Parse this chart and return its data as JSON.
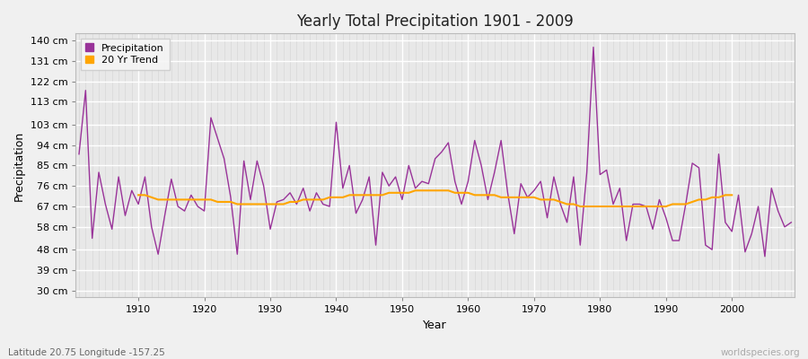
{
  "title": "Yearly Total Precipitation 1901 - 2009",
  "xlabel": "Year",
  "ylabel": "Precipitation",
  "subtitle": "Latitude 20.75 Longitude -157.25",
  "watermark": "worldspecies.org",
  "start_year": 1901,
  "precip_color": "#993399",
  "trend_color": "#FFA500",
  "background_color": "#f0f0f0",
  "plot_bg_color": "#e8e8e8",
  "grid_color_major": "#ffffff",
  "grid_color_minor": "#d8d8d8",
  "ylim": [
    27,
    143
  ],
  "yticks": [
    30,
    39,
    48,
    58,
    67,
    76,
    85,
    94,
    103,
    113,
    122,
    131,
    140
  ],
  "precipitation": [
    90,
    118,
    53,
    82,
    68,
    57,
    80,
    63,
    74,
    68,
    80,
    58,
    46,
    63,
    79,
    67,
    65,
    72,
    67,
    65,
    106,
    97,
    88,
    71,
    46,
    87,
    70,
    87,
    76,
    57,
    69,
    70,
    73,
    68,
    75,
    65,
    73,
    68,
    67,
    104,
    75,
    85,
    64,
    70,
    80,
    50,
    82,
    76,
    80,
    70,
    85,
    75,
    78,
    77,
    88,
    91,
    95,
    78,
    68,
    78,
    96,
    85,
    70,
    82,
    96,
    73,
    55,
    77,
    71,
    74,
    78,
    62,
    80,
    68,
    60,
    80,
    50,
    82,
    137,
    81,
    83,
    68,
    75,
    52,
    68,
    68,
    67,
    57,
    70,
    62,
    52,
    52,
    68,
    86,
    84,
    50,
    48,
    90,
    60,
    56,
    72,
    47,
    55,
    67,
    45,
    75,
    65,
    58,
    60
  ],
  "trend": [
    null,
    null,
    null,
    null,
    null,
    null,
    null,
    null,
    null,
    72,
    72,
    71,
    70,
    70,
    70,
    70,
    70,
    70,
    70,
    70,
    70,
    69,
    69,
    69,
    68,
    68,
    68,
    68,
    68,
    68,
    68,
    68,
    69,
    69,
    70,
    70,
    70,
    70,
    71,
    71,
    71,
    72,
    72,
    72,
    72,
    72,
    72,
    73,
    73,
    73,
    73,
    74,
    74,
    74,
    74,
    74,
    74,
    73,
    73,
    73,
    72,
    72,
    72,
    72,
    71,
    71,
    71,
    71,
    71,
    71,
    70,
    70,
    70,
    69,
    68,
    68,
    67,
    67,
    67,
    67,
    67,
    67,
    67,
    67,
    67,
    67,
    67,
    67,
    67,
    67,
    68,
    68,
    68,
    69,
    70,
    70,
    71,
    71,
    72,
    72,
    null,
    null,
    null,
    null,
    null,
    null,
    null,
    null,
    null
  ]
}
